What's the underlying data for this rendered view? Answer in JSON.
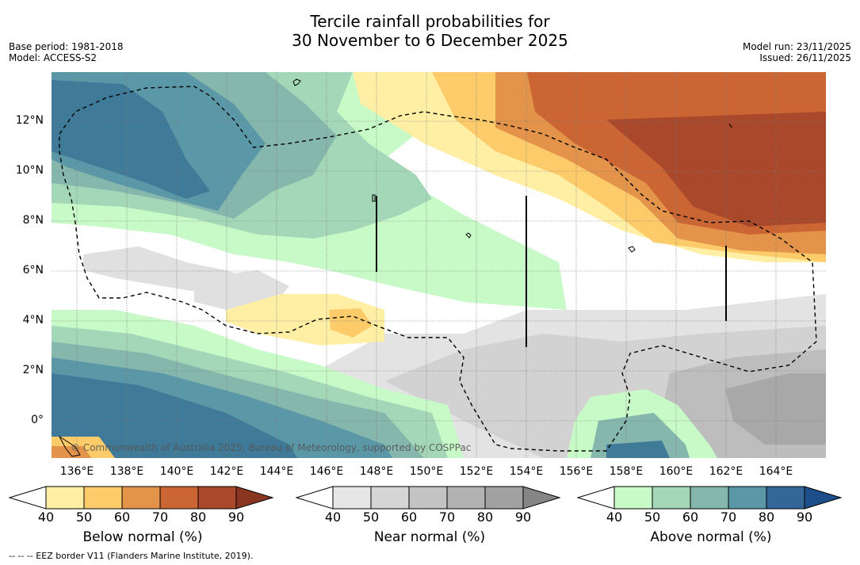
{
  "title": {
    "line1": "Tercile rainfall probabilities for",
    "line2": "30 November to 6 December 2025"
  },
  "meta": {
    "base_period": "Base period: 1981-2018",
    "model": "Model: ACCESS-S2",
    "model_run": "Model run: 23/11/2025",
    "issued": "Issued: 26/11/2025"
  },
  "axes": {
    "lat_labels": [
      "12°N",
      "10°N",
      "8°N",
      "6°N",
      "4°N",
      "2°N",
      "0°"
    ],
    "lon_labels": [
      "136°E",
      "138°E",
      "140°E",
      "142°E",
      "144°E",
      "146°E",
      "148°E",
      "150°E",
      "152°E",
      "154°E",
      "156°E",
      "158°E",
      "160°E",
      "162°E",
      "164°E"
    ]
  },
  "credit": "© Commonwealth of Australia 2025, Bureau of Meteorology, supported by COSPPac",
  "legends": [
    {
      "label": "Below normal (%)",
      "ticks": [
        "40",
        "50",
        "60",
        "70",
        "80",
        "90"
      ],
      "colors": [
        "#ffffff",
        "#ffefa4",
        "#fdcb6a",
        "#e3944a",
        "#cb6634",
        "#a9482a",
        "#8a3520"
      ]
    },
    {
      "label": "Near normal (%)",
      "ticks": [
        "40",
        "50",
        "60",
        "70",
        "80",
        "90"
      ],
      "colors": [
        "#ffffff",
        "#e6e6e6",
        "#d5d5d5",
        "#c3c3c3",
        "#b2b2b2",
        "#a1a1a1",
        "#858585"
      ]
    },
    {
      "label": "Above normal (%)",
      "ticks": [
        "40",
        "50",
        "60",
        "70",
        "80",
        "90"
      ],
      "colors": [
        "#ffffff",
        "#c8fac8",
        "#a4d7b8",
        "#86b7ad",
        "#5b98a7",
        "#336699",
        "#1d4f8a"
      ]
    }
  ],
  "footnote": "--  --  -- EEZ border V11 (Flanders Marine Institute, 2019)."
}
